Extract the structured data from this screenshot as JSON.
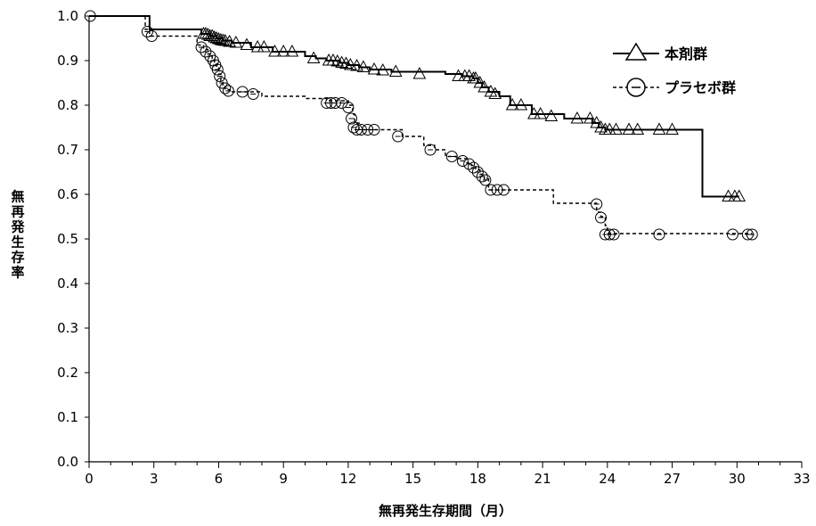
{
  "chart_data": {
    "type": "line",
    "xlabel": "無再発生存期間（月）",
    "ylabel": "無再発生存率",
    "xlim": [
      0,
      33
    ],
    "ylim": [
      0,
      1.0
    ],
    "x_ticks": [
      "0",
      "3",
      "6",
      "9",
      "12",
      "15",
      "18",
      "21",
      "24",
      "27",
      "30",
      "33"
    ],
    "y_ticks": [
      "0.0",
      "0.1",
      "0.2",
      "0.3",
      "0.4",
      "0.5",
      "0.6",
      "0.7",
      "0.8",
      "0.9",
      "1.0"
    ],
    "grid": false,
    "legend_position": "top-right",
    "series": [
      {
        "name": "本剤群",
        "line_style": "solid",
        "marker": "triangle",
        "color": "#000000",
        "steps": [
          [
            0,
            1.0
          ],
          [
            2.8,
            0.97
          ],
          [
            5.2,
            0.96
          ],
          [
            5.6,
            0.955
          ],
          [
            5.9,
            0.95
          ],
          [
            6.2,
            0.945
          ],
          [
            6.6,
            0.94
          ],
          [
            7.5,
            0.93
          ],
          [
            8.5,
            0.92
          ],
          [
            10.0,
            0.91
          ],
          [
            10.5,
            0.905
          ],
          [
            11.0,
            0.9
          ],
          [
            11.6,
            0.895
          ],
          [
            12.0,
            0.89
          ],
          [
            12.5,
            0.885
          ],
          [
            13.0,
            0.88
          ],
          [
            14.0,
            0.875
          ],
          [
            16.5,
            0.87
          ],
          [
            17.3,
            0.865
          ],
          [
            17.8,
            0.86
          ],
          [
            18.0,
            0.85
          ],
          [
            18.2,
            0.84
          ],
          [
            18.5,
            0.83
          ],
          [
            19.0,
            0.82
          ],
          [
            19.5,
            0.8
          ],
          [
            20.5,
            0.78
          ],
          [
            22.0,
            0.77
          ],
          [
            23.3,
            0.76
          ],
          [
            23.6,
            0.75
          ],
          [
            23.9,
            0.745
          ],
          [
            28.4,
            0.595
          ]
        ],
        "censored": [
          [
            5.3,
            0.96
          ],
          [
            5.4,
            0.96
          ],
          [
            5.5,
            0.958
          ],
          [
            5.6,
            0.955
          ],
          [
            5.7,
            0.955
          ],
          [
            5.8,
            0.952
          ],
          [
            5.9,
            0.95
          ],
          [
            6.0,
            0.948
          ],
          [
            6.1,
            0.946
          ],
          [
            6.2,
            0.945
          ],
          [
            6.3,
            0.944
          ],
          [
            6.5,
            0.942
          ],
          [
            6.8,
            0.94
          ],
          [
            7.3,
            0.935
          ],
          [
            7.8,
            0.93
          ],
          [
            8.1,
            0.93
          ],
          [
            8.6,
            0.92
          ],
          [
            9.0,
            0.92
          ],
          [
            9.4,
            0.92
          ],
          [
            10.4,
            0.905
          ],
          [
            11.1,
            0.9
          ],
          [
            11.3,
            0.9
          ],
          [
            11.5,
            0.898
          ],
          [
            11.7,
            0.895
          ],
          [
            11.9,
            0.893
          ],
          [
            12.1,
            0.89
          ],
          [
            12.4,
            0.888
          ],
          [
            12.7,
            0.885
          ],
          [
            13.2,
            0.88
          ],
          [
            13.6,
            0.878
          ],
          [
            14.2,
            0.875
          ],
          [
            15.3,
            0.87
          ],
          [
            17.1,
            0.865
          ],
          [
            17.4,
            0.865
          ],
          [
            17.6,
            0.865
          ],
          [
            17.8,
            0.86
          ],
          [
            17.9,
            0.86
          ],
          [
            18.1,
            0.85
          ],
          [
            18.3,
            0.84
          ],
          [
            18.6,
            0.83
          ],
          [
            18.8,
            0.825
          ],
          [
            19.6,
            0.8
          ],
          [
            20.0,
            0.8
          ],
          [
            20.6,
            0.78
          ],
          [
            20.9,
            0.78
          ],
          [
            21.4,
            0.775
          ],
          [
            22.6,
            0.77
          ],
          [
            23.2,
            0.77
          ],
          [
            23.5,
            0.76
          ],
          [
            23.7,
            0.75
          ],
          [
            23.9,
            0.745
          ],
          [
            24.1,
            0.745
          ],
          [
            24.4,
            0.745
          ],
          [
            25.0,
            0.745
          ],
          [
            25.4,
            0.745
          ],
          [
            26.4,
            0.745
          ],
          [
            27.0,
            0.745
          ],
          [
            29.6,
            0.595
          ],
          [
            29.9,
            0.595
          ],
          [
            30.1,
            0.595
          ]
        ]
      },
      {
        "name": "プラセボ群",
        "line_style": "dashed",
        "marker": "circle",
        "color": "#000000",
        "steps": [
          [
            0,
            1.0
          ],
          [
            2.6,
            0.97
          ],
          [
            2.8,
            0.955
          ],
          [
            5.0,
            0.935
          ],
          [
            5.3,
            0.925
          ],
          [
            5.5,
            0.915
          ],
          [
            5.7,
            0.905
          ],
          [
            5.8,
            0.895
          ],
          [
            5.9,
            0.885
          ],
          [
            6.0,
            0.87
          ],
          [
            6.1,
            0.855
          ],
          [
            6.2,
            0.845
          ],
          [
            6.3,
            0.835
          ],
          [
            6.5,
            0.83
          ],
          [
            8.0,
            0.82
          ],
          [
            10.0,
            0.815
          ],
          [
            11.0,
            0.81
          ],
          [
            12.0,
            0.8
          ],
          [
            12.2,
            0.78
          ],
          [
            12.3,
            0.76
          ],
          [
            12.5,
            0.745
          ],
          [
            14.5,
            0.73
          ],
          [
            15.5,
            0.71
          ],
          [
            16.0,
            0.7
          ],
          [
            16.5,
            0.685
          ],
          [
            17.0,
            0.68
          ],
          [
            17.5,
            0.67
          ],
          [
            17.7,
            0.665
          ],
          [
            17.9,
            0.655
          ],
          [
            18.1,
            0.645
          ],
          [
            18.3,
            0.635
          ],
          [
            18.5,
            0.61
          ],
          [
            21.5,
            0.58
          ],
          [
            23.5,
            0.56
          ],
          [
            23.7,
            0.55
          ],
          [
            23.9,
            0.53
          ],
          [
            24.0,
            0.512
          ]
        ],
        "censored": [
          [
            0.05,
            1.0
          ],
          [
            2.7,
            0.965
          ],
          [
            2.9,
            0.955
          ],
          [
            5.2,
            0.93
          ],
          [
            5.4,
            0.92
          ],
          [
            5.6,
            0.91
          ],
          [
            5.75,
            0.9
          ],
          [
            5.85,
            0.89
          ],
          [
            5.95,
            0.88
          ],
          [
            6.05,
            0.865
          ],
          [
            6.15,
            0.85
          ],
          [
            6.3,
            0.838
          ],
          [
            6.45,
            0.832
          ],
          [
            7.1,
            0.83
          ],
          [
            7.6,
            0.825
          ],
          [
            11.0,
            0.805
          ],
          [
            11.2,
            0.805
          ],
          [
            11.4,
            0.805
          ],
          [
            11.7,
            0.805
          ],
          [
            12.0,
            0.795
          ],
          [
            12.15,
            0.77
          ],
          [
            12.25,
            0.75
          ],
          [
            12.4,
            0.745
          ],
          [
            12.6,
            0.745
          ],
          [
            12.9,
            0.745
          ],
          [
            13.2,
            0.745
          ],
          [
            14.3,
            0.73
          ],
          [
            15.8,
            0.7
          ],
          [
            16.8,
            0.685
          ],
          [
            17.3,
            0.675
          ],
          [
            17.6,
            0.668
          ],
          [
            17.8,
            0.66
          ],
          [
            18.0,
            0.65
          ],
          [
            18.2,
            0.64
          ],
          [
            18.35,
            0.632
          ],
          [
            18.6,
            0.61
          ],
          [
            18.9,
            0.61
          ],
          [
            19.2,
            0.61
          ],
          [
            23.5,
            0.578
          ],
          [
            23.7,
            0.548
          ],
          [
            23.9,
            0.51
          ],
          [
            24.1,
            0.51
          ],
          [
            24.3,
            0.51
          ],
          [
            26.4,
            0.51
          ],
          [
            29.8,
            0.51
          ],
          [
            30.5,
            0.51
          ],
          [
            30.7,
            0.51
          ]
        ]
      }
    ]
  }
}
